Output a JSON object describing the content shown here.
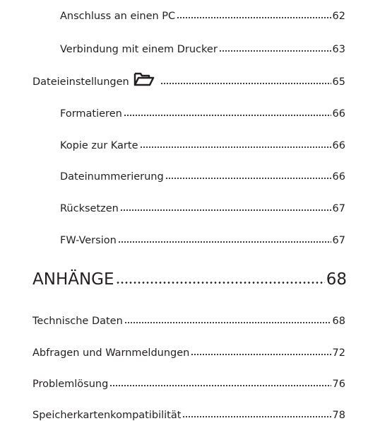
{
  "toc": {
    "entries": [
      {
        "label": "Anschluss an einen PC",
        "page": "62"
      },
      {
        "label": "Verbindung mit einem Drucker",
        "page": "63"
      },
      {
        "label": "Dateieinstellungen",
        "page": "65"
      },
      {
        "label": "Formatieren",
        "page": "66"
      },
      {
        "label": "Kopie zur Karte",
        "page": "66"
      },
      {
        "label": "Dateinummerierung",
        "page": "66"
      },
      {
        "label": "Rücksetzen",
        "page": "67"
      },
      {
        "label": "FW-Version",
        "page": "67"
      },
      {
        "label": "ANHÄNGE",
        "page": "68"
      },
      {
        "label": "Technische Daten",
        "page": "68"
      },
      {
        "label": "Abfragen und Warnmeldungen",
        "page": "72"
      },
      {
        "label": "Problemlösung",
        "page": "76"
      },
      {
        "label": "Speicherkartenkompatibilität",
        "page": "78"
      }
    ]
  }
}
